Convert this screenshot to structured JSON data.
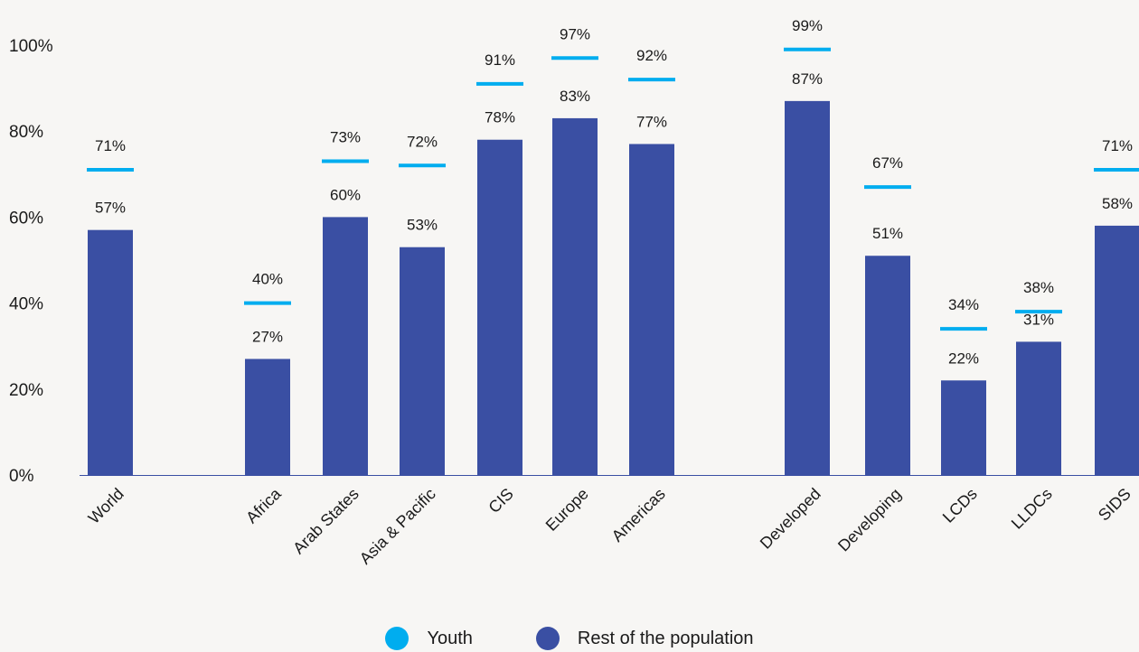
{
  "chart_data": {
    "type": "bar",
    "categories": [
      "World",
      "Africa",
      "Arab States",
      "Asia & Pacific",
      "CIS",
      "Europe",
      "Americas",
      "Developed",
      "Developing",
      "LCDs",
      "LLDCs",
      "SIDS"
    ],
    "series": [
      {
        "name": "Youth",
        "marker": "dash",
        "values": [
          71,
          40,
          73,
          72,
          91,
          97,
          92,
          99,
          67,
          34,
          38,
          71
        ]
      },
      {
        "name": "Rest of the population",
        "marker": "bar",
        "values": [
          57,
          27,
          60,
          53,
          78,
          83,
          77,
          87,
          51,
          22,
          31,
          58
        ]
      }
    ],
    "value_labels": {
      "youth": [
        "71%",
        "40%",
        "73%",
        "72%",
        "91%",
        "97%",
        "92%",
        "99%",
        "67%",
        "34%",
        "38%",
        "71%"
      ],
      "rest": [
        "57%",
        "27%",
        "60%",
        "53%",
        "78%",
        "83%",
        "77%",
        "87%",
        "51%",
        "22%",
        "31%",
        "58%"
      ]
    },
    "y_ticks": [
      0,
      20,
      40,
      60,
      80,
      100
    ],
    "y_tick_labels": [
      "0%",
      "20%",
      "40%",
      "60%",
      "80%",
      "100%"
    ],
    "ylim": [
      0,
      100
    ],
    "grid": false,
    "legend_position": "bottom-center",
    "colors": {
      "youth": "#00adef",
      "rest": "#3a4fa3",
      "background": "#f7f6f4",
      "axis": "#3a4fa3"
    }
  },
  "legend": {
    "youth_label": "Youth",
    "rest_label": "Rest of the population"
  }
}
